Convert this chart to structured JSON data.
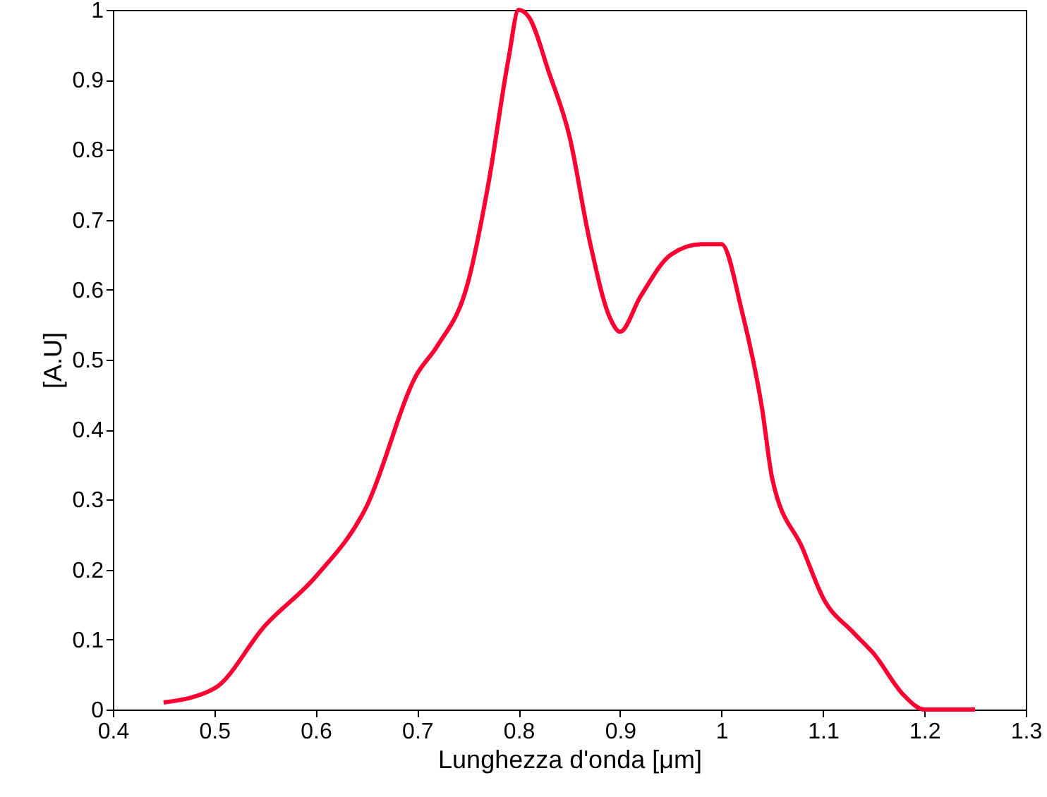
{
  "chart_data": {
    "type": "line",
    "xlabel": "Lunghezza d'onda [μm]",
    "ylabel": "[A.U]",
    "xlim": [
      0.4,
      1.3
    ],
    "xticks": [
      0.4,
      0.5,
      0.6,
      0.7,
      0.8,
      0.9,
      1,
      1.1,
      1.2,
      1.3
    ],
    "ylim": [
      0,
      1
    ],
    "yticks": [
      0,
      0.1,
      0.2,
      0.3,
      0.4,
      0.5,
      0.6,
      0.7,
      0.8,
      0.9,
      1
    ],
    "grid": false,
    "marker": "none",
    "line_style": "solid",
    "series": [
      {
        "color": "#ff0033",
        "x": [
          0.45,
          0.5,
          0.55,
          0.6,
          0.65,
          0.7,
          0.72,
          0.75,
          0.77,
          0.79,
          0.8,
          0.81,
          0.83,
          0.85,
          0.87,
          0.89,
          0.9,
          0.92,
          0.95,
          0.98,
          1.0,
          1.02,
          1.04,
          1.05,
          1.08,
          1.1,
          1.13,
          1.15,
          1.18,
          1.2,
          1.25
        ],
        "values": [
          0.01,
          0.03,
          0.12,
          0.19,
          0.29,
          0.48,
          0.52,
          0.61,
          0.75,
          0.93,
          1.0,
          0.99,
          0.91,
          0.82,
          0.67,
          0.56,
          0.54,
          0.59,
          0.65,
          0.665,
          0.665,
          0.57,
          0.43,
          0.33,
          0.23,
          0.16,
          0.11,
          0.08,
          0.02,
          0.0,
          0.0
        ]
      }
    ]
  }
}
